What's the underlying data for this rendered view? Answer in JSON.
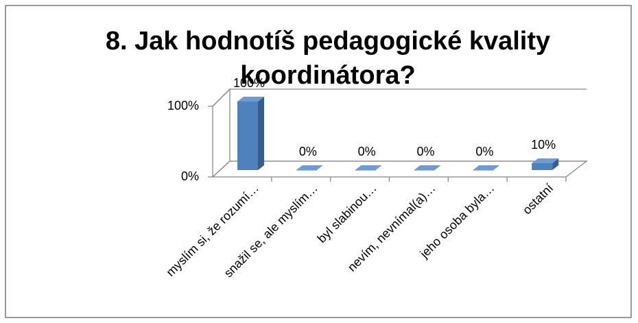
{
  "chart_data": {
    "type": "bar3d",
    "title": "8. Jak hodnotíš pedagogické kvality koordinátora?",
    "categories": [
      "myslím si, že rozumí…",
      "snažil se, ale myslím…",
      "byl slabinou…",
      "nevím, nevnímal(a)…",
      "jeho osoba byla…",
      "ostatní"
    ],
    "values": [
      100,
      0,
      0,
      0,
      0,
      10
    ],
    "value_labels": [
      "100%",
      "0%",
      "0%",
      "0%",
      "0%",
      "10%"
    ],
    "color": "#4f81bd",
    "ylim": [
      0,
      100
    ],
    "yticks": [
      {
        "value": 0,
        "label": "0%"
      },
      {
        "value": 100,
        "label": "100%"
      }
    ],
    "grid": true
  }
}
